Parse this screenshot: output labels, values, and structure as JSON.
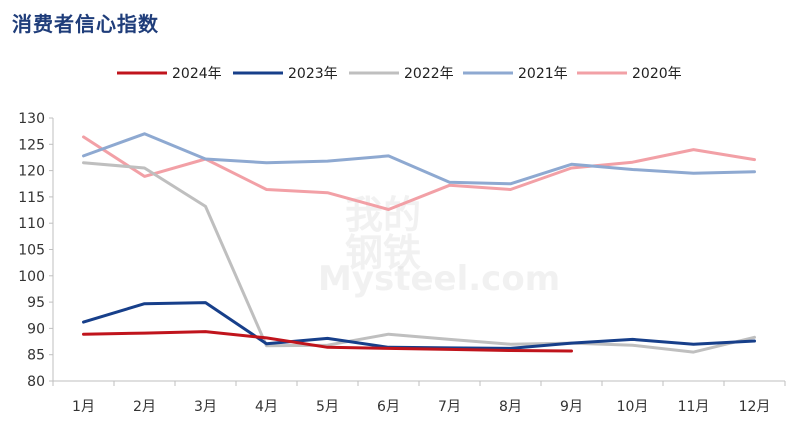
{
  "chart_data": {
    "type": "line",
    "title": "消费者信心指数",
    "categories": [
      "1月",
      "2月",
      "3月",
      "4月",
      "5月",
      "6月",
      "7月",
      "8月",
      "9月",
      "10月",
      "11月",
      "12月"
    ],
    "ylim": [
      80,
      130
    ],
    "yticks": [
      80,
      85,
      90,
      95,
      100,
      105,
      110,
      115,
      120,
      125,
      130
    ],
    "grid": false,
    "legend_position": "top",
    "series": [
      {
        "name": "2024年",
        "color": "#c0141c",
        "values": [
          88.9,
          89.1,
          89.4,
          88.2,
          86.4,
          86.2,
          86.0,
          85.8,
          85.7,
          null,
          null,
          null
        ]
      },
      {
        "name": "2023年",
        "color": "#173f8a",
        "values": [
          91.2,
          94.7,
          94.9,
          87.1,
          88.1,
          86.4,
          86.3,
          86.2,
          87.2,
          87.9,
          87.0,
          87.6
        ]
      },
      {
        "name": "2022年",
        "color": "#bfbfbf",
        "values": [
          121.5,
          120.5,
          113.2,
          86.7,
          86.8,
          88.9,
          87.9,
          87.0,
          87.2,
          86.8,
          85.5,
          88.3
        ]
      },
      {
        "name": "2021年",
        "color": "#8ea9d1",
        "values": [
          122.8,
          127.0,
          122.2,
          121.5,
          121.8,
          122.8,
          117.8,
          117.5,
          121.2,
          120.2,
          119.5,
          119.8
        ]
      },
      {
        "name": "2020年",
        "color": "#f2a0a6",
        "values": [
          126.4,
          118.9,
          122.2,
          116.4,
          115.8,
          112.6,
          117.2,
          116.4,
          120.5,
          121.6,
          124.0,
          122.1
        ]
      }
    ]
  },
  "watermark": {
    "line1": "我的",
    "line2": "钢铁",
    "line3": "Mysteel.com"
  }
}
